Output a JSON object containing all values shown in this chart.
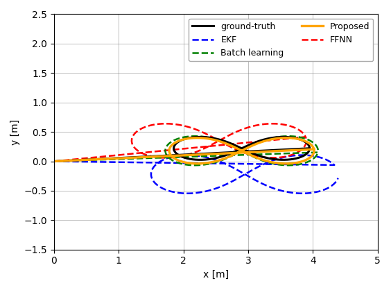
{
  "xlabel": "x [m]",
  "ylabel": "y [m]",
  "xlim": [
    0,
    5
  ],
  "ylim": [
    -1.5,
    2.5
  ],
  "xticks": [
    0,
    1,
    2,
    3,
    4,
    5
  ],
  "yticks": [
    -1.5,
    -1.0,
    -0.5,
    0.0,
    0.5,
    1.0,
    1.5,
    2.0,
    2.5
  ],
  "figsize": [
    5.64,
    4.18
  ],
  "dpi": 100,
  "lines": {
    "ground_truth": {
      "label": "ground-truth",
      "color": "black",
      "linestyle": "-",
      "linewidth": 2.2
    },
    "batch": {
      "label": "Batch learning",
      "color": "green",
      "linestyle": "--",
      "linewidth": 1.8
    },
    "ffnn": {
      "label": "FFNN",
      "color": "red",
      "linestyle": "--",
      "linewidth": 1.8
    },
    "ekf": {
      "label": "EKF",
      "color": "blue",
      "linestyle": "--",
      "linewidth": 1.8
    },
    "proposed": {
      "label": "Proposed",
      "color": "orange",
      "linestyle": "-",
      "linewidth": 2.4
    }
  },
  "legend_order": [
    "ground_truth",
    "ekf",
    "batch",
    "proposed",
    "ffnn"
  ]
}
